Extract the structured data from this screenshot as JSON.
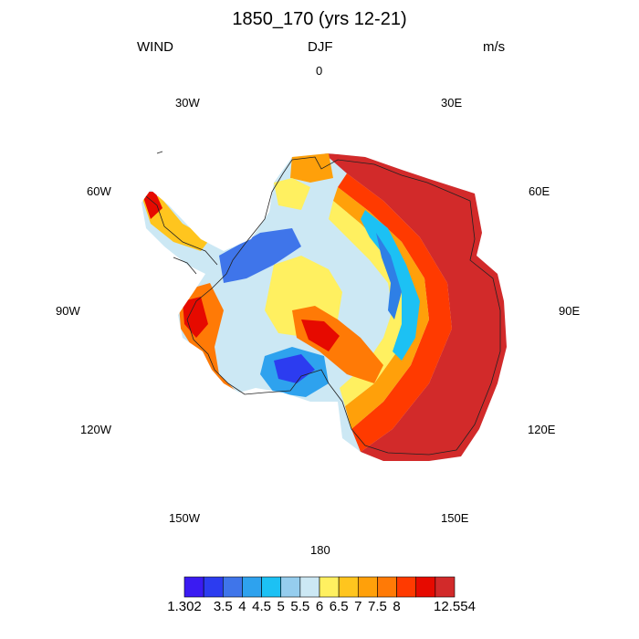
{
  "title": "1850_170 (yrs 12-21)",
  "left_label": "WIND",
  "center_label": "DJF",
  "right_label": "m/s",
  "longitude_labels": {
    "top": "0",
    "top_left": "30W",
    "top_right": "30E",
    "upper_left": "60W",
    "upper_right": "60E",
    "left": "90W",
    "right": "90E",
    "lower_left": "120W",
    "lower_right": "120E",
    "bottom_left": "150W",
    "bottom_right": "150E",
    "bottom": "180"
  },
  "colorbar": {
    "colors": [
      "#3a1bf2",
      "#2c3cf0",
      "#3f75ea",
      "#2ea2ee",
      "#1cc1f4",
      "#95cdee",
      "#cce8f4",
      "#fff060",
      "#ffc51e",
      "#ffa00a",
      "#ff7a06",
      "#ff3a00",
      "#e60a00",
      "#d22a2a"
    ],
    "labels": [
      "1.302",
      "3.5",
      "4",
      "4.5",
      "5",
      "5.5",
      "6",
      "6.5",
      "7",
      "7.5",
      "8",
      "12.554"
    ]
  },
  "legend_colors": {
    "coastline": "#222222"
  }
}
